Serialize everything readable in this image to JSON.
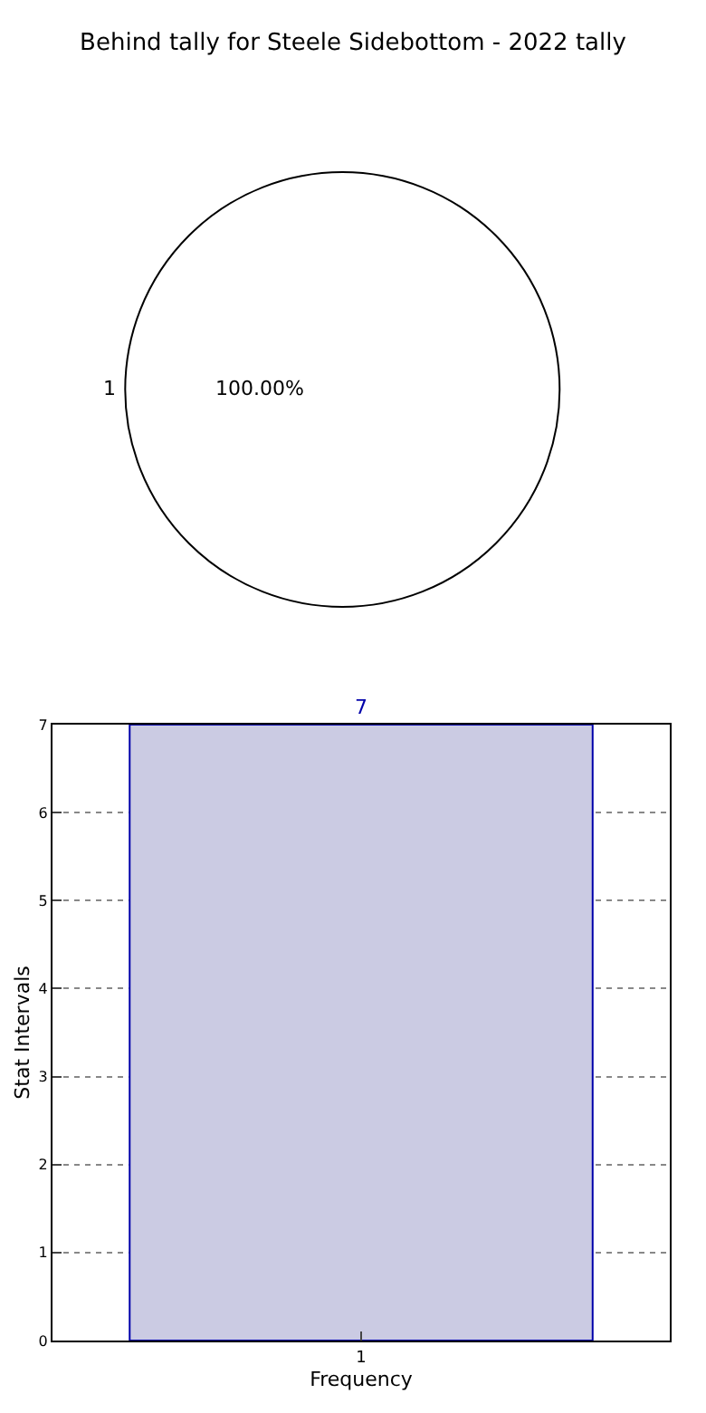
{
  "chart_data": [
    {
      "type": "pie",
      "title": "Behind tally for Steele Sidebottom - 2022 tally",
      "categories": [
        "1"
      ],
      "values": [
        100
      ],
      "colors": [
        "#ffffff"
      ],
      "value_labels": [
        "100.00%"
      ],
      "legend": false
    },
    {
      "type": "bar",
      "categories": [
        "1"
      ],
      "values": [
        7
      ],
      "color": "#cbcbe3",
      "ylim": [
        0,
        7
      ],
      "yticks": [
        0,
        1,
        2,
        3,
        4,
        5,
        6,
        7
      ],
      "grid": true,
      "data_labels": true,
      "xlabel": "Frequency",
      "ylabel": "Stat Intervals",
      "legend": false
    }
  ]
}
